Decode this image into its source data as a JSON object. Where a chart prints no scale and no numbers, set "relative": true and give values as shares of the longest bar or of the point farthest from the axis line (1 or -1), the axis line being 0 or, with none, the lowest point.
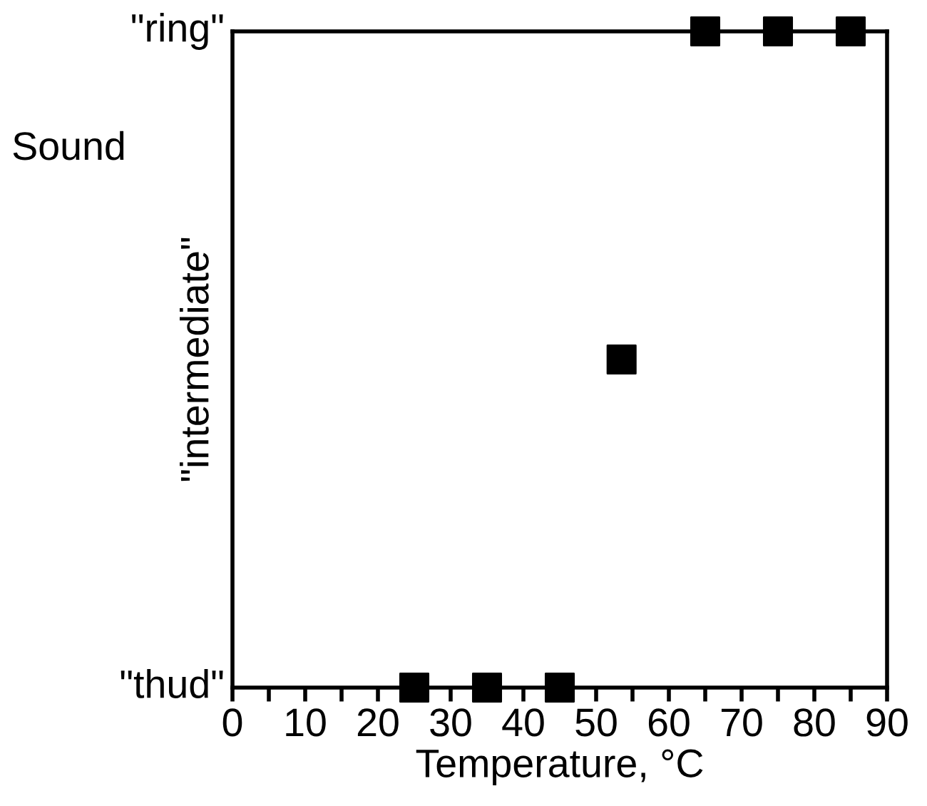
{
  "chart_data": {
    "type": "scatter",
    "xlabel": "Temperature, °C",
    "ylabel": "Sound",
    "x": [
      25,
      35,
      45,
      53.5,
      65,
      75,
      85
    ],
    "series": [
      {
        "color": "#000000",
        "values": [
          0,
          0,
          0,
          0.5,
          1,
          1,
          1
        ]
      }
    ],
    "relative": true,
    "annotations": [
      "\"thud\"",
      "\"intermediate\"",
      "\"ring\""
    ],
    "marker": "square",
    "grid": false,
    "xlim": [
      0,
      90
    ],
    "xticks": [
      0,
      {
        "value": 5,
        "label": null
      },
      10,
      {
        "value": 15,
        "label": null
      },
      20,
      {
        "value": 25,
        "label": null
      },
      30,
      {
        "value": 35,
        "label": null
      },
      40,
      {
        "value": 45,
        "label": null
      },
      50,
      {
        "value": 55,
        "label": null
      },
      60,
      {
        "value": 65,
        "label": null
      },
      70,
      {
        "value": 75,
        "label": null
      },
      80,
      {
        "value": 85,
        "label": null
      },
      90
    ]
  }
}
